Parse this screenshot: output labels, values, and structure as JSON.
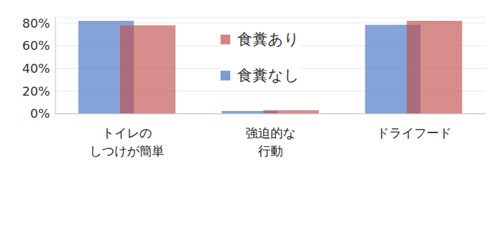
{
  "chart_data": {
    "type": "bar",
    "categories": [
      "トイレの\nしつけが簡単",
      "強迫的な\n行動",
      "ドライフード"
    ],
    "series": [
      {
        "name": "食糞なし",
        "color": "#4472c4",
        "values": [
          82,
          2.5,
          78.5
        ]
      },
      {
        "name": "食糞あり",
        "color": "#c0504d",
        "values": [
          78,
          3,
          82
        ]
      }
    ],
    "ylim": [
      0,
      85
    ],
    "yticks": [
      {
        "value": 0,
        "label": "0%"
      },
      {
        "value": 20,
        "label": "20%"
      },
      {
        "value": 40,
        "label": "40%"
      },
      {
        "value": 60,
        "label": "60%"
      },
      {
        "value": 80,
        "label": "80%"
      }
    ],
    "grid": true,
    "legend": "top"
  }
}
